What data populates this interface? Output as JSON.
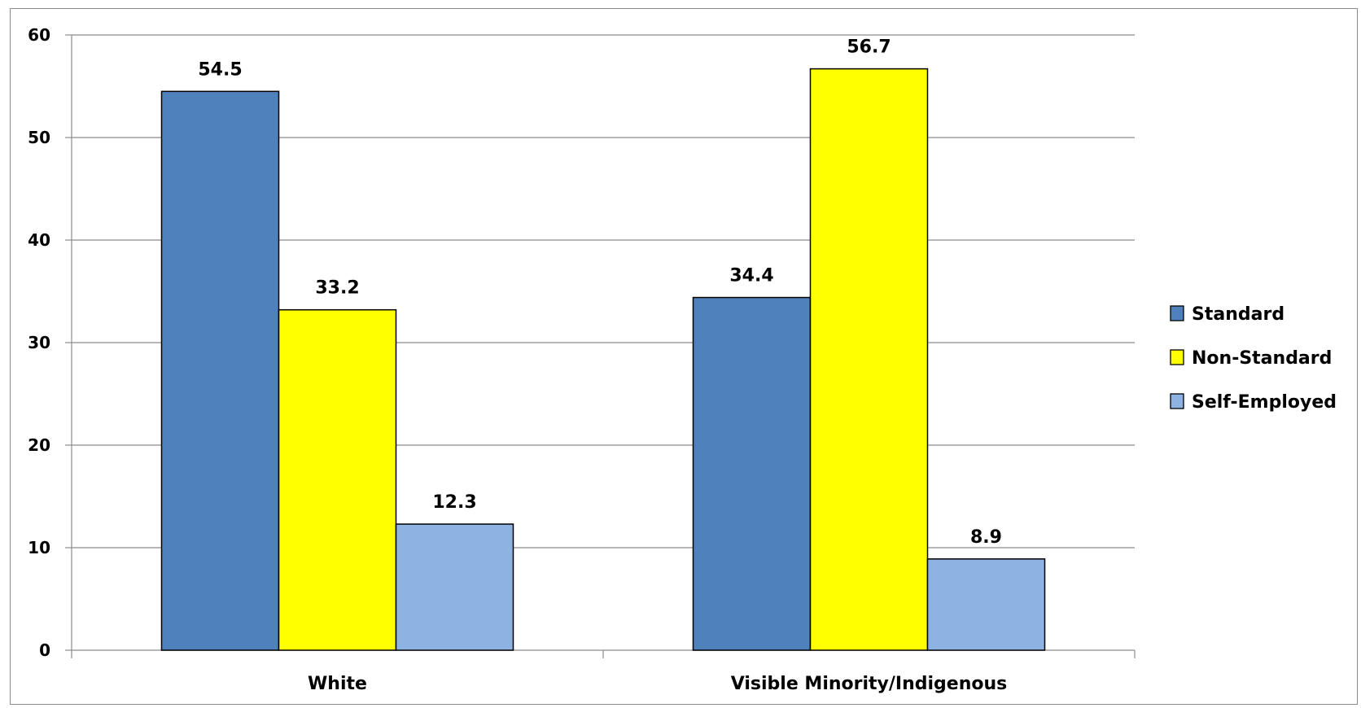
{
  "chart_data": {
    "type": "bar",
    "categories": [
      "White",
      "Visible Minority/Indigenous"
    ],
    "series": [
      {
        "name": "Standard",
        "values": [
          54.5,
          34.4
        ],
        "color": "#4F81BD"
      },
      {
        "name": "Non-Standard",
        "values": [
          33.2,
          56.7
        ],
        "color": "#FFFF00"
      },
      {
        "name": "Self-Employed",
        "values": [
          12.3,
          8.9
        ],
        "color": "#8DB3E2"
      }
    ],
    "data_labels": [
      [
        "54.5",
        "34.4"
      ],
      [
        "33.2",
        "56.7"
      ],
      [
        "12.3",
        "8.9"
      ]
    ],
    "yticks": [
      "0",
      "10",
      "20",
      "30",
      "40",
      "50",
      "60"
    ],
    "ylim": [
      0,
      60
    ],
    "title": "",
    "xlabel": "",
    "ylabel": "",
    "grid": true,
    "legend_position": "right"
  }
}
